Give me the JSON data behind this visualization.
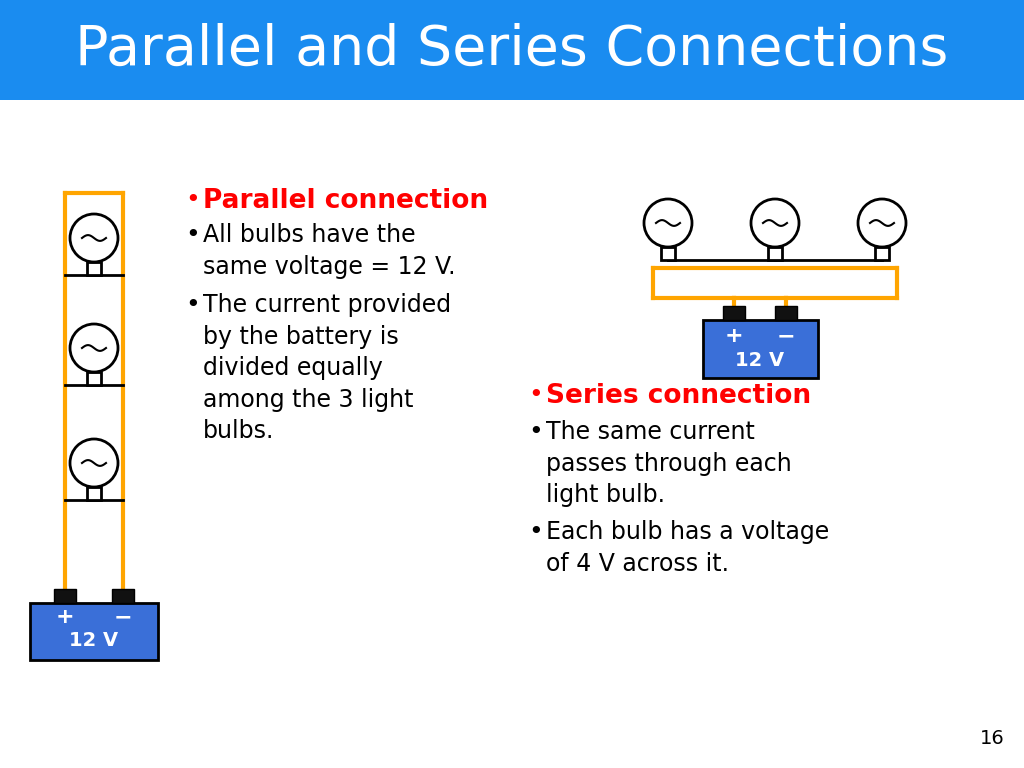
{
  "title": "Parallel and Series Connections",
  "title_bg": "#1a8cf0",
  "title_color": "#ffffff",
  "bg_color": "#ffffff",
  "wire_color_orange": "#FFA500",
  "wire_color_black": "#000000",
  "battery_color": "#3a6fd8",
  "battery_terminal_color": "#111111",
  "parallel_heading": "Parallel connection",
  "parallel_bullets": [
    "All bulbs have the\nsame voltage = 12 V.",
    "The current provided\nby the battery is\ndivided equally\namong the 3 light\nbulbs."
  ],
  "series_heading": "Series connection",
  "series_bullets": [
    "The same current\npasses through each\nlight bulb.",
    "Each bulb has a voltage\nof 4 V across it."
  ],
  "heading_color": "#ff0000",
  "text_color": "#000000",
  "slide_number": "16",
  "title_fontsize": 40,
  "body_fontsize": 17,
  "heading_fontsize": 19
}
